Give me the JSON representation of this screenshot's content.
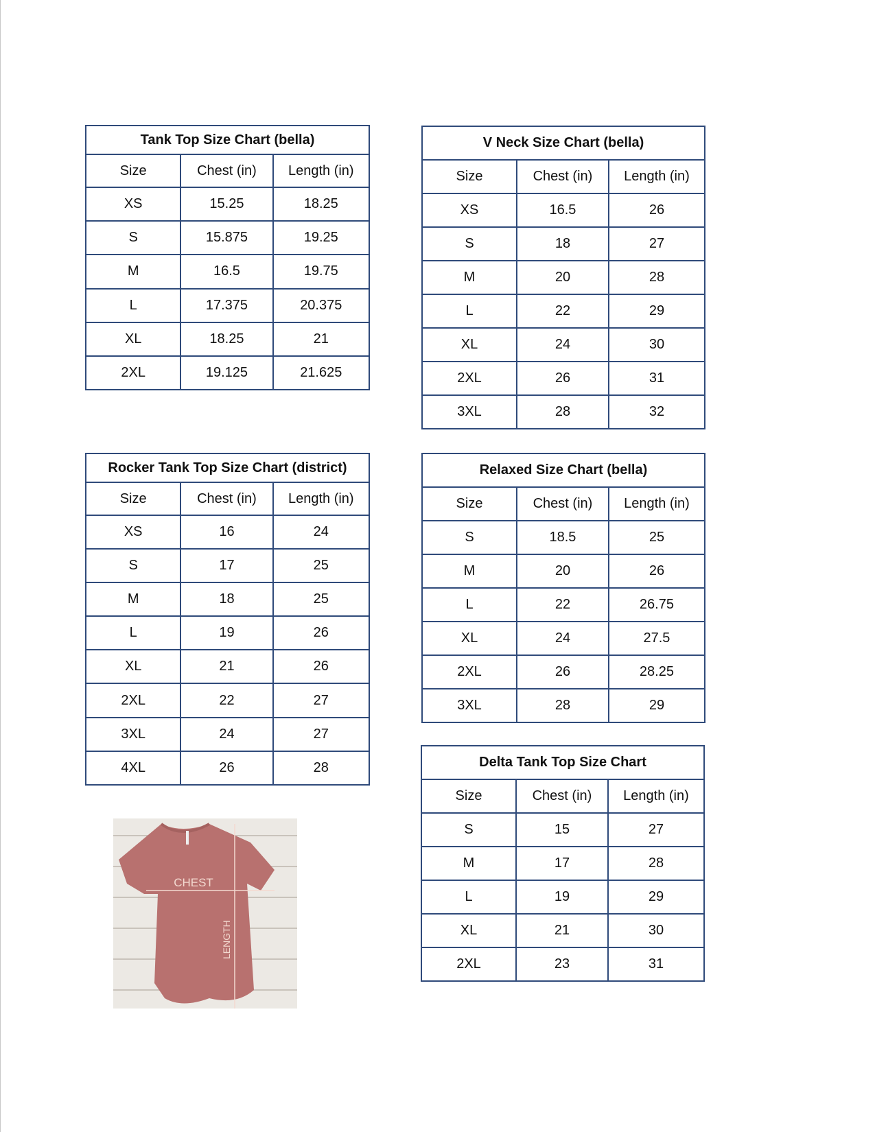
{
  "tables": [
    {
      "title": "Tank Top Size Chart  (bella)",
      "headers": [
        "Size",
        "Chest (in)",
        "Length (in)"
      ],
      "rows": [
        [
          "XS",
          "15.25",
          "18.25"
        ],
        [
          "S",
          "15.875",
          "19.25"
        ],
        [
          "M",
          "16.5",
          "19.75"
        ],
        [
          "L",
          "17.375",
          "20.375"
        ],
        [
          "XL",
          "18.25",
          "21"
        ],
        [
          "2XL",
          "19.125",
          "21.625"
        ]
      ]
    },
    {
      "title": "V Neck Size Chart  (bella)",
      "headers": [
        "Size",
        "Chest (in)",
        "Length (in)"
      ],
      "rows": [
        [
          "XS",
          "16.5",
          "26"
        ],
        [
          "S",
          "18",
          "27"
        ],
        [
          "M",
          "20",
          "28"
        ],
        [
          "L",
          "22",
          "29"
        ],
        [
          "XL",
          "24",
          "30"
        ],
        [
          "2XL",
          "26",
          "31"
        ],
        [
          "3XL",
          "28",
          "32"
        ]
      ]
    },
    {
      "title": "Rocker Tank Top Size Chart (district)",
      "headers": [
        "Size",
        "Chest (in)",
        "Length (in)"
      ],
      "rows": [
        [
          "XS",
          "16",
          "24"
        ],
        [
          "S",
          "17",
          "25"
        ],
        [
          "M",
          "18",
          "25"
        ],
        [
          "L",
          "19",
          "26"
        ],
        [
          "XL",
          "21",
          "26"
        ],
        [
          "2XL",
          "22",
          "27"
        ],
        [
          "3XL",
          "24",
          "27"
        ],
        [
          "4XL",
          "26",
          "28"
        ]
      ]
    },
    {
      "title": "Relaxed Size Chart (bella)",
      "headers": [
        "Size",
        "Chest (in)",
        "Length (in)"
      ],
      "rows": [
        [
          "S",
          "18.5",
          "25"
        ],
        [
          "M",
          "20",
          "26"
        ],
        [
          "L",
          "22",
          "26.75"
        ],
        [
          "XL",
          "24",
          "27.5"
        ],
        [
          "2XL",
          "26",
          "28.25"
        ],
        [
          "3XL",
          "28",
          "29"
        ]
      ]
    },
    {
      "title": "Delta Tank Top Size Chart",
      "headers": [
        "Size",
        "Chest (in)",
        "Length (in)"
      ],
      "rows": [
        [
          "S",
          "15",
          "27"
        ],
        [
          "M",
          "17",
          "28"
        ],
        [
          "L",
          "19",
          "29"
        ],
        [
          "XL",
          "21",
          "30"
        ],
        [
          "2XL",
          "23",
          "31"
        ]
      ]
    }
  ],
  "photo": {
    "chest_label": "CHEST",
    "length_label": "LENGTH",
    "shirt_color": "#b8716f"
  },
  "colors": {
    "table_border": "#2f4a7a"
  }
}
